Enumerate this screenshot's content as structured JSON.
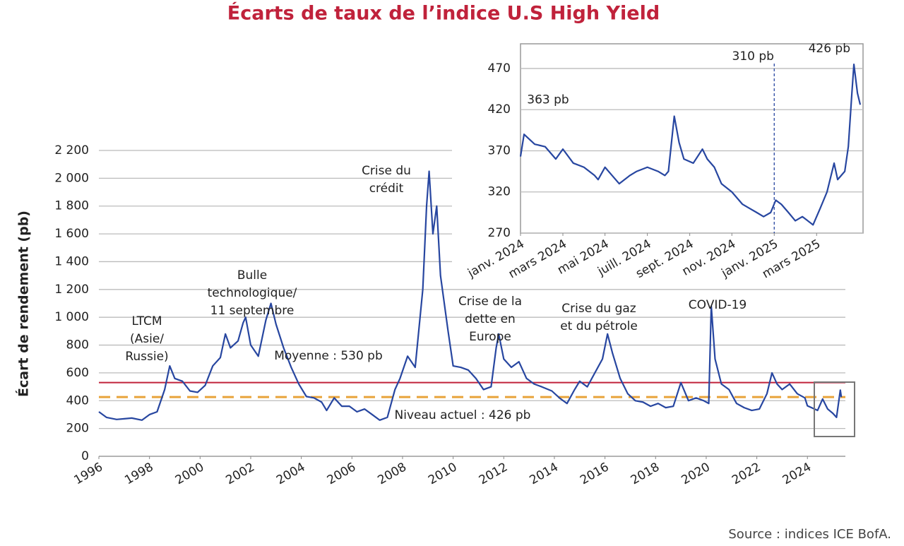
{
  "chart_data": [
    {
      "type": "line",
      "title": "Écarts de taux de l’indice U.S High Yield",
      "y_label": "Écart de rendement (pb)",
      "source": "Source : indices ICE BofA.",
      "xlim": [
        1996,
        2025.5
      ],
      "xticks": [
        1996,
        1998,
        2000,
        2002,
        2004,
        2006,
        2008,
        2010,
        2012,
        2014,
        2016,
        2018,
        2020,
        2022,
        2024
      ],
      "ylim": [
        0,
        2200
      ],
      "yticks": [
        0,
        200,
        400,
        600,
        800,
        {
          "value": 1000,
          "label": "1 000"
        },
        {
          "value": 1200,
          "label": "1 200"
        },
        {
          "value": 1400,
          "label": "1 400"
        },
        {
          "value": 1600,
          "label": "1 600"
        },
        {
          "value": 1800,
          "label": "1 800"
        },
        {
          "value": 2000,
          "label": "2 000"
        },
        {
          "value": 2200,
          "label": "2 200"
        }
      ],
      "grid": true,
      "series": [
        {
          "color": "#2746a0",
          "x": [
            1996.0,
            1996.3,
            1996.7,
            1997.0,
            1997.3,
            1997.7,
            1998.0,
            1998.3,
            1998.6,
            1998.8,
            1999.0,
            1999.3,
            1999.6,
            1999.9,
            2000.2,
            2000.5,
            2000.8,
            2001.0,
            2001.2,
            2001.5,
            2001.7,
            2001.8,
            2002.0,
            2002.3,
            2002.6,
            2002.8,
            2003.0,
            2003.3,
            2003.6,
            2003.9,
            2004.2,
            2004.5,
            2004.8,
            2005.0,
            2005.3,
            2005.6,
            2005.9,
            2006.2,
            2006.5,
            2006.8,
            2007.1,
            2007.4,
            2007.7,
            2007.9,
            2008.2,
            2008.5,
            2008.8,
            2008.95,
            2009.05,
            2009.2,
            2009.35,
            2009.5,
            2009.8,
            2010.0,
            2010.3,
            2010.6,
            2010.9,
            2011.2,
            2011.5,
            2011.7,
            2011.8,
            2012.0,
            2012.3,
            2012.6,
            2012.9,
            2013.2,
            2013.5,
            2013.9,
            2014.2,
            2014.5,
            2014.8,
            2015.0,
            2015.3,
            2015.6,
            2015.9,
            2016.1,
            2016.3,
            2016.6,
            2016.9,
            2017.2,
            2017.5,
            2017.8,
            2018.1,
            2018.4,
            2018.7,
            2019.0,
            2019.3,
            2019.6,
            2019.9,
            2020.1,
            2020.2,
            2020.35,
            2020.6,
            2020.9,
            2021.2,
            2021.5,
            2021.8,
            2022.1,
            2022.4,
            2022.6,
            2022.8,
            2023.0,
            2023.3,
            2023.6,
            2023.9,
            2024.0,
            2024.4,
            2024.6,
            2024.8,
            2025.0,
            2025.15,
            2025.3,
            2025.34
          ],
          "values": [
            320,
            280,
            265,
            270,
            275,
            260,
            300,
            320,
            480,
            650,
            560,
            540,
            470,
            460,
            510,
            650,
            710,
            880,
            780,
            830,
            960,
            1000,
            800,
            720,
            980,
            1100,
            950,
            780,
            640,
            520,
            430,
            420,
            390,
            330,
            420,
            360,
            360,
            320,
            340,
            300,
            260,
            280,
            480,
            560,
            720,
            640,
            1200,
            1800,
            2050,
            1600,
            1800,
            1300,
            900,
            650,
            640,
            620,
            560,
            480,
            500,
            780,
            880,
            700,
            640,
            680,
            560,
            520,
            500,
            470,
            420,
            380,
            480,
            540,
            500,
            600,
            700,
            880,
            740,
            560,
            450,
            400,
            390,
            360,
            380,
            350,
            360,
            530,
            400,
            420,
            400,
            380,
            1080,
            700,
            520,
            480,
            380,
            350,
            330,
            340,
            450,
            600,
            520,
            480,
            520,
            450,
            420,
            363,
            330,
            412,
            340,
            310,
            280,
            476,
            426
          ]
        }
      ],
      "hlines": [
        {
          "value": 530,
          "label": "Moyenne : 530 pb",
          "color": "#c0223b"
        },
        {
          "value": 426,
          "label": "Niveau actuel : 426 pb",
          "color": "#e8a33a",
          "dashed": true
        }
      ],
      "annotations": [
        [
          "LTCM",
          "(Asie/",
          "Russie)"
        ],
        [
          "Bulle",
          "technologique/",
          "11 septembre"
        ],
        [
          "Crise du",
          "crédit"
        ],
        [
          "Crise de la",
          "dette en",
          "Europe"
        ],
        [
          "Crise du gaz",
          "et du pétrole"
        ],
        [
          "COVID-19"
        ]
      ]
    },
    {
      "type": "line",
      "xlim": [
        2024,
        2025.35
      ],
      "xticks": [
        {
          "value": 2024.0,
          "label": "janv. 2024"
        },
        {
          "value": 2024.167,
          "label": "mars 2024"
        },
        {
          "value": 2024.333,
          "label": "mai 2024"
        },
        {
          "value": 2024.5,
          "label": "juill. 2024"
        },
        {
          "value": 2024.667,
          "label": "sept. 2024"
        },
        {
          "value": 2024.833,
          "label": "nov. 2024"
        },
        {
          "value": 2025.0,
          "label": "janv. 2025"
        },
        {
          "value": 2025.167,
          "label": "mars 2025"
        }
      ],
      "ylim": [
        270,
        500
      ],
      "yticks": [
        270,
        320,
        370,
        420,
        470
      ],
      "grid": true,
      "series": [
        {
          "color": "#2746a0",
          "x": [
            2024.0,
            2024.014,
            2024.056,
            2024.097,
            2024.139,
            2024.167,
            2024.208,
            2024.25,
            2024.292,
            2024.306,
            2024.333,
            2024.361,
            2024.389,
            2024.431,
            2024.458,
            2024.5,
            2024.542,
            2024.569,
            2024.583,
            2024.606,
            2024.625,
            2024.644,
            2024.681,
            2024.717,
            2024.736,
            2024.764,
            2024.792,
            2024.833,
            2024.875,
            2024.903,
            2024.931,
            2024.958,
            2024.986,
            2025.006,
            2025.028,
            2025.056,
            2025.083,
            2025.111,
            2025.153,
            2025.181,
            2025.208,
            2025.236,
            2025.25,
            2025.278,
            2025.292,
            2025.306,
            2025.314,
            2025.328,
            2025.339
          ],
          "values": [
            363,
            390,
            378,
            375,
            360,
            372,
            355,
            350,
            340,
            335,
            350,
            340,
            330,
            340,
            345,
            350,
            345,
            340,
            345,
            412,
            380,
            360,
            355,
            372,
            360,
            350,
            330,
            320,
            305,
            300,
            295,
            290,
            295,
            310,
            305,
            295,
            285,
            290,
            280,
            300,
            320,
            355,
            335,
            345,
            375,
            440,
            475,
            440,
            426
          ]
        }
      ],
      "vline": {
        "value": 2025.0,
        "label": "310 pb"
      },
      "point_labels": [
        {
          "label": "363 pb",
          "value": 363
        },
        {
          "label": "426 pb",
          "value": 426
        }
      ]
    }
  ]
}
